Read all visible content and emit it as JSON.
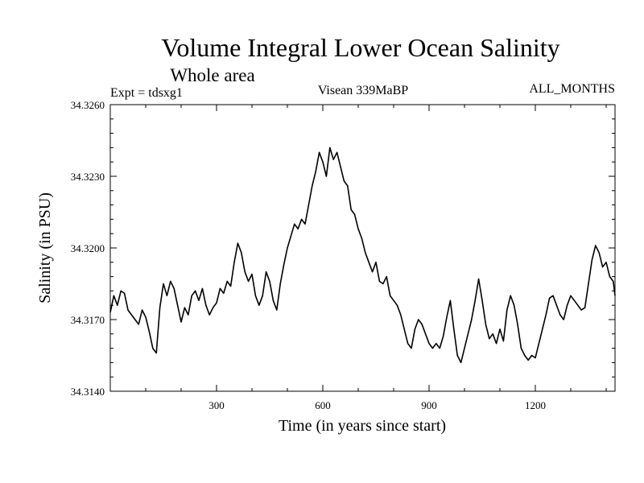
{
  "chart_data": {
    "type": "line",
    "title": "Volume Integral Lower Ocean Salinity",
    "subtitle": "Whole area",
    "annotations": {
      "left": "Expt = tdsxg1",
      "center": "Visean 339MaBP",
      "right": "ALL_MONTHS"
    },
    "xlabel": "Time (in years since start)",
    "ylabel": "Salinity (in PSU)",
    "xlim": [
      0,
      1425
    ],
    "ylim": [
      34.314,
      34.326
    ],
    "x_ticks": [
      300,
      600,
      900,
      1200
    ],
    "y_ticks": [
      "34.3140",
      "34.3170",
      "34.3200",
      "34.3230",
      "34.3260"
    ],
    "grid": false,
    "series": [
      {
        "name": "Salinity",
        "color": "#000000",
        "x": [
          0,
          10,
          20,
          30,
          40,
          50,
          60,
          70,
          80,
          90,
          100,
          110,
          120,
          130,
          140,
          150,
          160,
          170,
          180,
          190,
          200,
          210,
          220,
          230,
          240,
          250,
          260,
          270,
          280,
          290,
          300,
          310,
          320,
          330,
          340,
          350,
          360,
          370,
          380,
          390,
          400,
          410,
          420,
          430,
          440,
          450,
          460,
          470,
          480,
          490,
          500,
          510,
          520,
          530,
          540,
          550,
          560,
          570,
          580,
          590,
          600,
          610,
          620,
          630,
          640,
          650,
          660,
          670,
          680,
          690,
          700,
          710,
          720,
          730,
          740,
          750,
          760,
          770,
          780,
          790,
          800,
          810,
          820,
          830,
          840,
          850,
          860,
          870,
          880,
          890,
          900,
          910,
          920,
          930,
          940,
          950,
          960,
          970,
          980,
          990,
          1000,
          1010,
          1020,
          1030,
          1040,
          1050,
          1060,
          1070,
          1080,
          1090,
          1100,
          1110,
          1120,
          1130,
          1140,
          1150,
          1160,
          1170,
          1180,
          1190,
          1200,
          1210,
          1220,
          1230,
          1240,
          1250,
          1260,
          1270,
          1280,
          1290,
          1300,
          1310,
          1320,
          1330,
          1340,
          1350,
          1360,
          1370,
          1380,
          1390,
          1400,
          1410,
          1420,
          1425
        ],
        "values": [
          34.3173,
          34.318,
          34.3176,
          34.3182,
          34.3181,
          34.3174,
          34.3172,
          34.317,
          34.3168,
          34.3174,
          34.3171,
          34.3165,
          34.3158,
          34.3156,
          34.3175,
          34.3185,
          34.318,
          34.3186,
          34.3183,
          34.3176,
          34.3169,
          34.3175,
          34.3172,
          34.318,
          34.3182,
          34.3178,
          34.3183,
          34.3176,
          34.3172,
          34.3175,
          34.3177,
          34.3183,
          34.3181,
          34.3186,
          34.3184,
          34.3194,
          34.3202,
          34.3198,
          34.319,
          34.3186,
          34.3189,
          34.318,
          34.3176,
          34.318,
          34.319,
          34.3186,
          34.3178,
          34.3174,
          34.3185,
          34.3193,
          34.32,
          34.3205,
          34.321,
          34.3208,
          34.3212,
          34.321,
          34.3218,
          34.3226,
          34.3232,
          34.324,
          34.3236,
          34.323,
          34.3242,
          34.3237,
          34.324,
          34.3234,
          34.3228,
          34.3226,
          34.3216,
          34.3214,
          34.3208,
          34.3204,
          34.3198,
          34.3194,
          34.319,
          34.3194,
          34.3186,
          34.3185,
          34.3188,
          34.318,
          34.3178,
          34.3176,
          34.3172,
          34.3166,
          34.316,
          34.3158,
          34.3166,
          34.317,
          34.3168,
          34.3164,
          34.316,
          34.3158,
          34.316,
          34.3158,
          34.3163,
          34.3171,
          34.3178,
          34.3166,
          34.3155,
          34.3152,
          34.3158,
          34.3164,
          34.317,
          34.3178,
          34.3187,
          34.3178,
          34.3168,
          34.3162,
          34.3164,
          34.316,
          34.3166,
          34.3161,
          34.3174,
          34.318,
          34.3176,
          34.3168,
          34.3158,
          34.3155,
          34.3153,
          34.3155,
          34.3154,
          34.316,
          34.3166,
          34.3172,
          34.3179,
          34.318,
          34.3176,
          34.3172,
          34.317,
          34.3176,
          34.318,
          34.3178,
          34.3176,
          34.3174,
          34.3175,
          34.3185,
          34.3195,
          34.3201,
          34.3198,
          34.3192,
          34.3194,
          34.3188,
          34.3186,
          34.318
        ]
      }
    ]
  }
}
